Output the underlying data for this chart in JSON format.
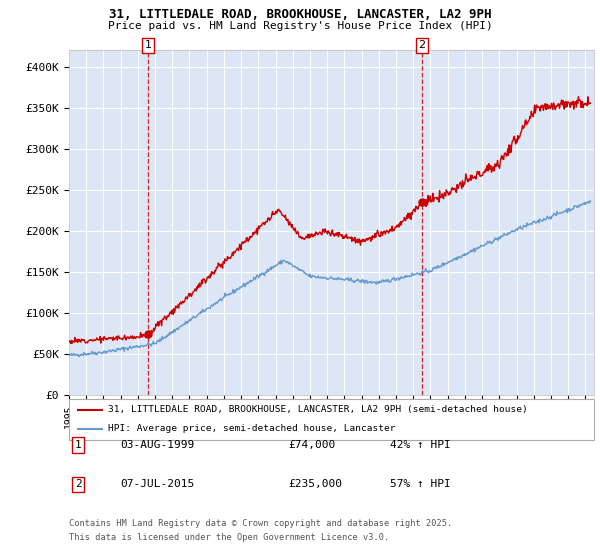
{
  "title1": "31, LITTLEDALE ROAD, BROOKHOUSE, LANCASTER, LA2 9PH",
  "title2": "Price paid vs. HM Land Registry's House Price Index (HPI)",
  "xlim_start": 1995.0,
  "xlim_end": 2025.5,
  "ylim": [
    0,
    420000
  ],
  "yticks": [
    0,
    50000,
    100000,
    150000,
    200000,
    250000,
    300000,
    350000,
    400000
  ],
  "ytick_labels": [
    "£0",
    "£50K",
    "£100K",
    "£150K",
    "£200K",
    "£250K",
    "£300K",
    "£350K",
    "£400K"
  ],
  "sale1_date": 1999.586,
  "sale1_price": 74000,
  "sale2_date": 2015.51,
  "sale2_price": 235000,
  "legend_line1": "31, LITTLEDALE ROAD, BROOKHOUSE, LANCASTER, LA2 9PH (semi-detached house)",
  "legend_line2": "HPI: Average price, semi-detached house, Lancaster",
  "marker1_label": "1",
  "marker2_label": "2",
  "table_row1": [
    "1",
    "03-AUG-1999",
    "£74,000",
    "42% ↑ HPI"
  ],
  "table_row2": [
    "2",
    "07-JUL-2015",
    "£235,000",
    "57% ↑ HPI"
  ],
  "footnote1": "Contains HM Land Registry data © Crown copyright and database right 2025.",
  "footnote2": "This data is licensed under the Open Government Licence v3.0.",
  "red_color": "#cc0000",
  "blue_color": "#6699cc",
  "bg_color": "#dce6f5",
  "grid_color": "#ffffff"
}
